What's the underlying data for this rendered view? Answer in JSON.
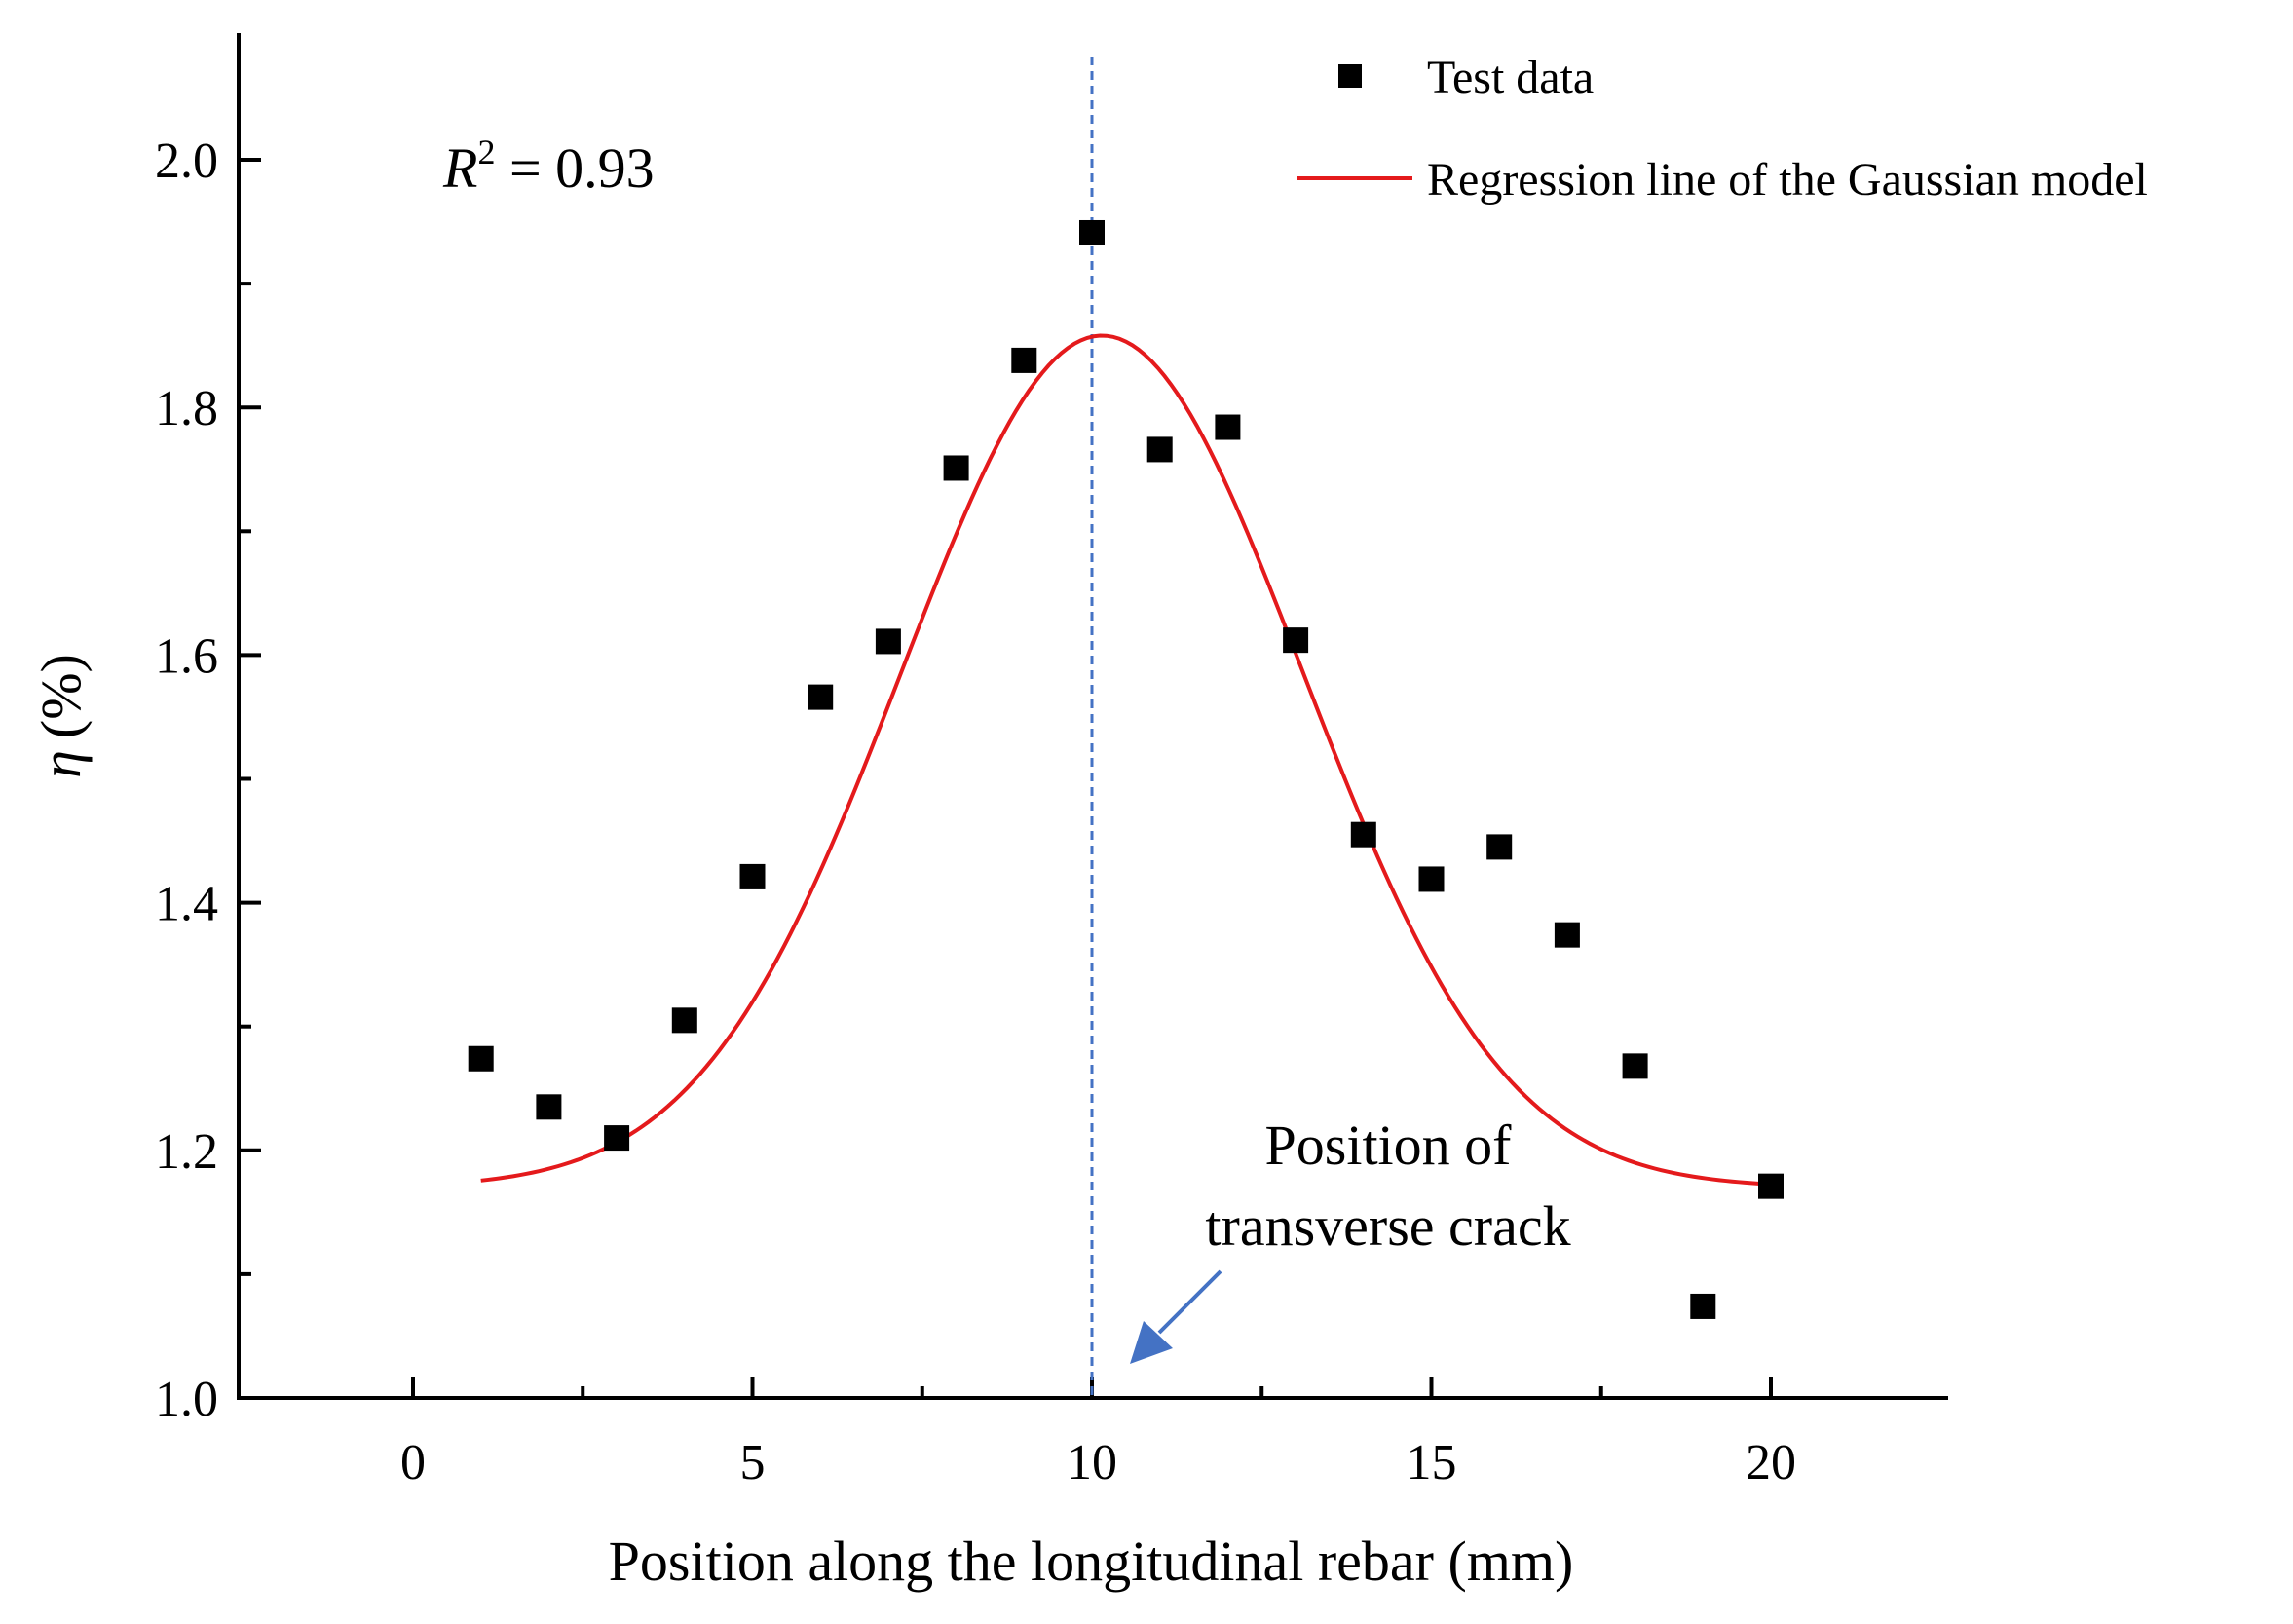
{
  "chart_data": {
    "type": "scatter",
    "title": "",
    "xlabel": "Position along the longitudinal rebar (mm)",
    "ylabel": "η (%)",
    "ylabel_symbol": "η",
    "ylabel_unit": "(%)",
    "xlim": [
      -2.5,
      22.5
    ],
    "ylim": [
      1.0,
      2.1
    ],
    "x_ticks": [
      0,
      5,
      10,
      15,
      20
    ],
    "x_tick_labels": [
      "0",
      "5",
      "10",
      "15",
      "20"
    ],
    "y_ticks": [
      1.0,
      1.2,
      1.4,
      1.6,
      1.8,
      2.0
    ],
    "y_tick_labels": [
      "1.0",
      "1.2",
      "1.4",
      "1.6",
      "1.8",
      "2.0"
    ],
    "grid": false,
    "legend_position": "top-right",
    "series": [
      {
        "name": "Test data",
        "kind": "scatter",
        "color": "#000000",
        "x": [
          1,
          2,
          3,
          4,
          5,
          6,
          7,
          8,
          9,
          10,
          11,
          12,
          13,
          14,
          15,
          16,
          17,
          18,
          19,
          20
        ],
        "y": [
          1.274,
          1.235,
          1.21,
          1.305,
          1.421,
          1.566,
          1.611,
          1.751,
          1.838,
          1.941,
          1.766,
          1.784,
          1.612,
          1.455,
          1.419,
          1.445,
          1.374,
          1.268,
          1.074,
          1.171
        ]
      },
      {
        "name": "Regression line of the Gaussian model",
        "kind": "line",
        "color": "#e41a1c",
        "model": "gaussian",
        "x_range": [
          1,
          20
        ],
        "baseline": 1.17,
        "amplitude": 0.688,
        "center": 10.15,
        "sigma": 2.95
      }
    ],
    "reference_line": {
      "x": 10,
      "color": "#4472c4",
      "style": "dashed"
    },
    "annotations": {
      "r2_label": "R",
      "r2_superscript": "2",
      "r2_value": " = 0.93",
      "crack_line1": "Position of",
      "crack_line2": "transverse crack",
      "arrow_color": "#4472c4"
    }
  }
}
